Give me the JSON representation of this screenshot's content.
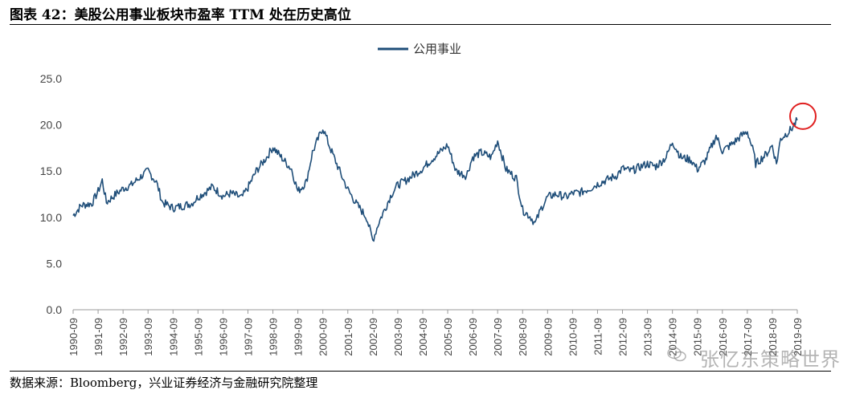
{
  "figure": {
    "title": "图表 42：美股公用事业板块市盈率 TTM 处在历史高位",
    "source": "数据来源：Bloomberg，兴业证券经济与金融研究院整理",
    "watermark": "张忆东策略世界"
  },
  "chart_data": {
    "type": "line",
    "series": [
      {
        "name": "公用事业",
        "color": "#1f4e79",
        "points": [
          [
            "1990-09",
            10.2
          ],
          [
            "1991-01",
            11.3
          ],
          [
            "1991-06",
            11.5
          ],
          [
            "1991-09",
            12.8
          ],
          [
            "1991-11",
            14.0
          ],
          [
            "1992-01",
            11.6
          ],
          [
            "1992-06",
            12.6
          ],
          [
            "1992-09",
            13.1
          ],
          [
            "1993-01",
            13.5
          ],
          [
            "1993-06",
            14.5
          ],
          [
            "1993-09",
            15.0
          ],
          [
            "1994-01",
            13.8
          ],
          [
            "1994-04",
            11.6
          ],
          [
            "1994-09",
            11.0
          ],
          [
            "1995-01",
            11.2
          ],
          [
            "1995-06",
            11.5
          ],
          [
            "1995-09",
            12.2
          ],
          [
            "1996-01",
            12.8
          ],
          [
            "1996-04",
            13.3
          ],
          [
            "1996-09",
            12.3
          ],
          [
            "1997-01",
            12.6
          ],
          [
            "1997-06",
            12.1
          ],
          [
            "1997-09",
            13.2
          ],
          [
            "1998-01",
            15.0
          ],
          [
            "1998-06",
            16.5
          ],
          [
            "1998-09",
            17.6
          ],
          [
            "1999-01",
            16.5
          ],
          [
            "1999-06",
            15.2
          ],
          [
            "1999-09",
            12.8
          ],
          [
            "2000-01",
            13.8
          ],
          [
            "2000-04",
            17.0
          ],
          [
            "2000-09",
            19.7
          ],
          [
            "2000-12",
            17.8
          ],
          [
            "2001-06",
            14.5
          ],
          [
            "2001-09",
            13.0
          ],
          [
            "2002-01",
            11.5
          ],
          [
            "2002-06",
            10.0
          ],
          [
            "2002-09",
            7.5
          ],
          [
            "2002-12",
            9.5
          ],
          [
            "2003-06",
            12.5
          ],
          [
            "2003-09",
            13.5
          ],
          [
            "2004-01",
            14.0
          ],
          [
            "2004-06",
            14.8
          ],
          [
            "2004-09",
            15.3
          ],
          [
            "2005-01",
            16.2
          ],
          [
            "2005-06",
            17.2
          ],
          [
            "2005-09",
            17.8
          ],
          [
            "2006-01",
            15.0
          ],
          [
            "2006-06",
            14.5
          ],
          [
            "2006-09",
            16.5
          ],
          [
            "2007-01",
            17.0
          ],
          [
            "2007-06",
            16.5
          ],
          [
            "2007-09",
            18.3
          ],
          [
            "2008-01",
            15.2
          ],
          [
            "2008-06",
            14.2
          ],
          [
            "2008-09",
            10.8
          ],
          [
            "2009-01",
            10.0
          ],
          [
            "2009-03",
            9.3
          ],
          [
            "2009-06",
            11.0
          ],
          [
            "2009-09",
            12.2
          ],
          [
            "2010-01",
            12.5
          ],
          [
            "2010-06",
            12.2
          ],
          [
            "2010-09",
            12.6
          ],
          [
            "2011-01",
            12.7
          ],
          [
            "2011-06",
            13.2
          ],
          [
            "2011-09",
            13.6
          ],
          [
            "2012-01",
            14.0
          ],
          [
            "2012-06",
            14.5
          ],
          [
            "2012-09",
            15.3
          ],
          [
            "2013-01",
            15.0
          ],
          [
            "2013-06",
            15.5
          ],
          [
            "2013-09",
            15.8
          ],
          [
            "2014-01",
            15.5
          ],
          [
            "2014-06",
            16.5
          ],
          [
            "2014-09",
            18.2
          ],
          [
            "2015-01",
            16.5
          ],
          [
            "2015-06",
            16.2
          ],
          [
            "2015-09",
            15.2
          ],
          [
            "2016-01",
            16.2
          ],
          [
            "2016-06",
            18.8
          ],
          [
            "2016-09",
            17.2
          ],
          [
            "2017-01",
            17.8
          ],
          [
            "2017-06",
            18.8
          ],
          [
            "2017-09",
            19.3
          ],
          [
            "2017-12",
            17.0
          ],
          [
            "2018-01",
            15.8
          ],
          [
            "2018-06",
            16.8
          ],
          [
            "2018-09",
            17.8
          ],
          [
            "2018-11",
            15.8
          ],
          [
            "2019-01",
            18.5
          ],
          [
            "2019-06",
            19.5
          ],
          [
            "2019-09",
            20.5
          ]
        ]
      }
    ],
    "x_ticks": [
      "1990-09",
      "1991-09",
      "1992-09",
      "1993-09",
      "1994-09",
      "1995-09",
      "1996-09",
      "1997-09",
      "1998-09",
      "1999-09",
      "2000-09",
      "2001-09",
      "2002-09",
      "2003-09",
      "2004-09",
      "2005-09",
      "2006-09",
      "2007-09",
      "2008-09",
      "2009-09",
      "2010-09",
      "2011-09",
      "2012-09",
      "2013-09",
      "2014-09",
      "2015-09",
      "2016-09",
      "2017-09",
      "2018-09",
      "2019-09"
    ],
    "y_ticks": [
      0.0,
      5.0,
      10.0,
      15.0,
      20.0,
      25.0
    ],
    "ylim": [
      0,
      25
    ],
    "xlim": [
      "1990-09",
      "2019-09"
    ],
    "legend_position": "top-center",
    "grid": false,
    "annotation": {
      "type": "circle",
      "at": [
        "2019-09",
        20.5
      ],
      "color": "#e02020"
    }
  }
}
